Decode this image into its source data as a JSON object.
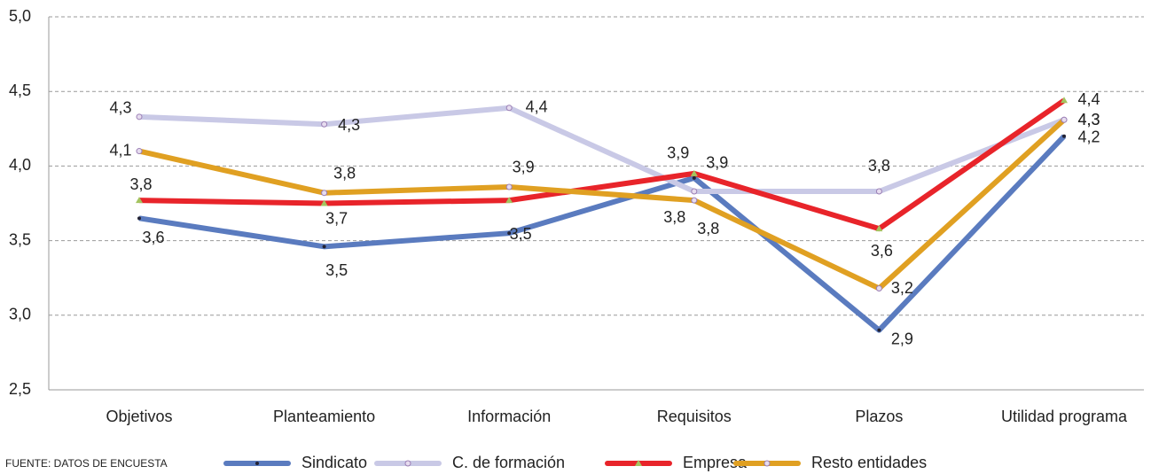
{
  "chart_data": {
    "type": "line",
    "source": "FUENTE: DATOS DE ENCUESTA",
    "categories": [
      "Objetivos",
      "Planteamiento",
      "Información",
      "Requisitos",
      "Plazos",
      "Utilidad programa"
    ],
    "ylim": [
      2.5,
      5.0
    ],
    "yticks": [
      {
        "value": 2.5,
        "label": "2,5"
      },
      {
        "value": 3.0,
        "label": "3,0"
      },
      {
        "value": 3.5,
        "label": "3,5"
      },
      {
        "value": 4.0,
        "label": "4,0"
      },
      {
        "value": 4.5,
        "label": "4,5"
      },
      {
        "value": 5.0,
        "label": "5,0"
      }
    ],
    "grid": true,
    "legend": "bottom",
    "series": [
      {
        "name": "Sindicato",
        "color": "#5a7bbf",
        "marker": "dot",
        "values": [
          3.65,
          3.46,
          3.55,
          3.92,
          2.9,
          4.2
        ],
        "value_labels": [
          "3,6",
          "3,5",
          "3,5",
          "3,9",
          "2,9",
          "4,2"
        ]
      },
      {
        "name": "C. de formación",
        "color": "#c9c9e6",
        "marker": "circle",
        "values": [
          4.33,
          4.28,
          4.39,
          3.83,
          3.83,
          4.31
        ],
        "value_labels": [
          "4,3",
          "4,3",
          "4,4",
          "3,8",
          "3,8",
          "4,3"
        ]
      },
      {
        "name": "Empresa",
        "color": "#e8242a",
        "marker": "triangle",
        "values": [
          3.77,
          3.75,
          3.77,
          3.95,
          3.58,
          4.44
        ],
        "value_labels": [
          "3,8",
          "3,7",
          null,
          "3,9",
          "3,6",
          "4,4"
        ]
      },
      {
        "name": "Resto entidades",
        "color": "#e0a022",
        "marker": "circle",
        "values": [
          4.1,
          3.82,
          3.86,
          3.77,
          3.18,
          4.31
        ],
        "value_labels": [
          "4,1",
          "3,8",
          "3,9",
          "3,8",
          "3,2",
          "4,3"
        ]
      }
    ]
  }
}
